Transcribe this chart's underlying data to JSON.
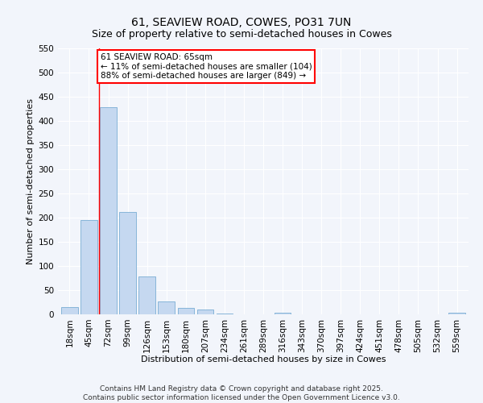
{
  "title": "61, SEAVIEW ROAD, COWES, PO31 7UN",
  "subtitle": "Size of property relative to semi-detached houses in Cowes",
  "xlabel": "Distribution of semi-detached houses by size in Cowes",
  "ylabel": "Number of semi-detached properties",
  "bar_color": "#c5d8f0",
  "bar_edge_color": "#7aadd4",
  "categories": [
    "18sqm",
    "45sqm",
    "72sqm",
    "99sqm",
    "126sqm",
    "153sqm",
    "180sqm",
    "207sqm",
    "234sqm",
    "261sqm",
    "289sqm",
    "316sqm",
    "343sqm",
    "370sqm",
    "397sqm",
    "424sqm",
    "451sqm",
    "478sqm",
    "505sqm",
    "532sqm",
    "559sqm"
  ],
  "values": [
    15,
    195,
    428,
    212,
    78,
    27,
    13,
    10,
    2,
    0,
    0,
    4,
    0,
    0,
    0,
    0,
    0,
    0,
    0,
    0,
    4
  ],
  "ylim": [
    0,
    550
  ],
  "yticks": [
    0,
    50,
    100,
    150,
    200,
    250,
    300,
    350,
    400,
    450,
    500,
    550
  ],
  "annotation_box_text": "61 SEAVIEW ROAD: 65sqm\n← 11% of semi-detached houses are smaller (104)\n88% of semi-detached houses are larger (849) →",
  "annotation_box_color": "white",
  "annotation_box_edge_color": "red",
  "vline_x": 1.5,
  "vline_color": "red",
  "bg_color": "#f2f5fb",
  "plot_bg_color": "#f2f5fb",
  "footer_text": "Contains HM Land Registry data © Crown copyright and database right 2025.\nContains public sector information licensed under the Open Government Licence v3.0.",
  "title_fontsize": 10,
  "subtitle_fontsize": 9,
  "xlabel_fontsize": 8,
  "ylabel_fontsize": 8,
  "tick_fontsize": 7.5,
  "annotation_fontsize": 7.5,
  "footer_fontsize": 6.5
}
